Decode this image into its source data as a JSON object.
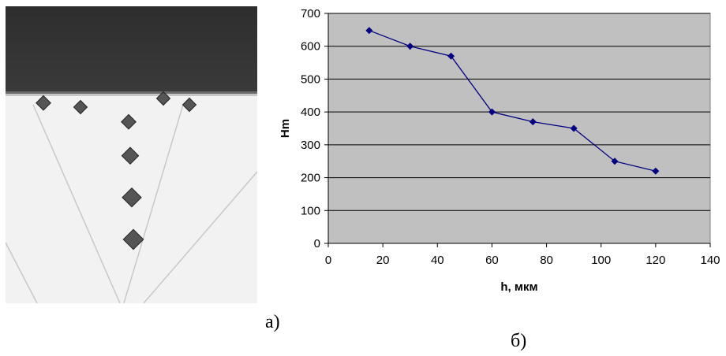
{
  "captions": {
    "left": "а)",
    "right": "б)"
  },
  "colors": {
    "plot_bg": "#c0c0c0",
    "series": "#000080",
    "grid": "#000000"
  },
  "chart_data": {
    "type": "line",
    "xlabel": "h, мкм",
    "ylabel": "Hm",
    "xlim": [
      0,
      140
    ],
    "ylim": [
      0,
      700
    ],
    "xticks": [
      0,
      20,
      40,
      60,
      80,
      100,
      120,
      140
    ],
    "yticks": [
      0,
      100,
      200,
      300,
      400,
      500,
      600,
      700
    ],
    "grid": "horizontal",
    "marker": "diamond",
    "series": [
      {
        "x": [
          15,
          30,
          45,
          60,
          75,
          90,
          105,
          120
        ],
        "values": [
          648,
          600,
          570,
          400,
          370,
          350,
          250,
          220
        ]
      }
    ]
  }
}
